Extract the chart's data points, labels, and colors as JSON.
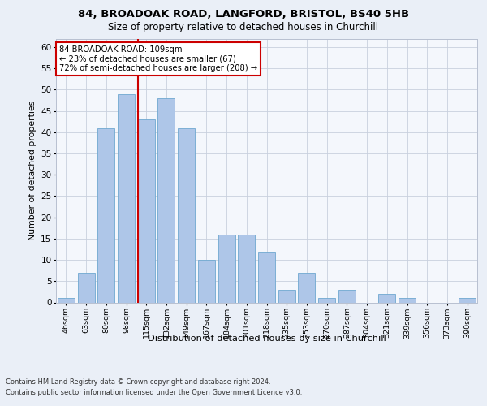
{
  "title1": "84, BROADOAK ROAD, LANGFORD, BRISTOL, BS40 5HB",
  "title2": "Size of property relative to detached houses in Churchill",
  "xlabel": "Distribution of detached houses by size in Churchill",
  "ylabel": "Number of detached properties",
  "categories": [
    "46sqm",
    "63sqm",
    "80sqm",
    "98sqm",
    "115sqm",
    "132sqm",
    "149sqm",
    "167sqm",
    "184sqm",
    "201sqm",
    "218sqm",
    "235sqm",
    "253sqm",
    "270sqm",
    "287sqm",
    "304sqm",
    "321sqm",
    "339sqm",
    "356sqm",
    "373sqm",
    "390sqm"
  ],
  "values": [
    1,
    7,
    41,
    49,
    43,
    48,
    41,
    10,
    16,
    16,
    12,
    3,
    7,
    1,
    3,
    0,
    2,
    1,
    0,
    0,
    1
  ],
  "bar_color": "#aec6e8",
  "bar_edge_color": "#6fa8d0",
  "property_line_index": 4,
  "annotation_line1": "84 BROADOAK ROAD: 109sqm",
  "annotation_line2": "← 23% of detached houses are smaller (67)",
  "annotation_line3": "72% of semi-detached houses are larger (208) →",
  "red_line_color": "#cc0000",
  "ylim": [
    0,
    62
  ],
  "yticks": [
    0,
    5,
    10,
    15,
    20,
    25,
    30,
    35,
    40,
    45,
    50,
    55,
    60
  ],
  "footer1": "Contains HM Land Registry data © Crown copyright and database right 2024.",
  "footer2": "Contains public sector information licensed under the Open Government Licence v3.0.",
  "bg_color": "#eaeff7",
  "plot_bg_color": "#f4f7fc"
}
